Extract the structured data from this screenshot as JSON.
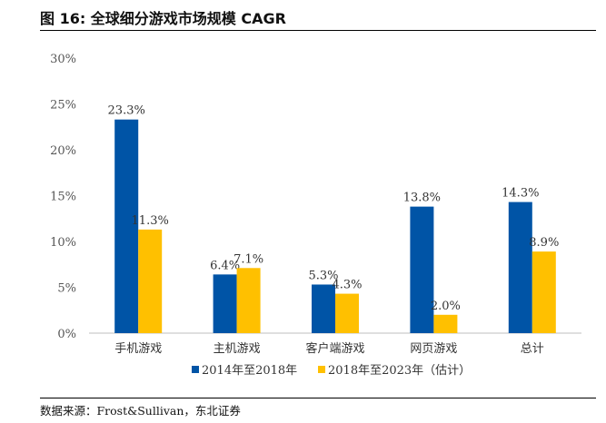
{
  "figure": {
    "title": "图 16:  全球细分游戏市场规模 CAGR",
    "source": "数据来源：Frost&Sullivan，东北证券"
  },
  "chart_data": {
    "type": "bar",
    "categories": [
      "手机游戏",
      "主机游戏",
      "客户端游戏",
      "网页游戏",
      "总计"
    ],
    "series": [
      {
        "name": "2014年至2018年",
        "values": [
          23.3,
          6.4,
          5.3,
          13.8,
          14.3
        ],
        "color": "#0054A6"
      },
      {
        "name": "2018年至2023年（估计）",
        "values": [
          11.3,
          7.1,
          4.3,
          2.0,
          8.9
        ],
        "color": "#FFC000"
      }
    ],
    "ylim": [
      0,
      30
    ],
    "yticks": [
      "0%",
      "5%",
      "10%",
      "15%",
      "20%",
      "25%",
      "30%"
    ],
    "ytick_values": [
      0,
      5,
      10,
      15,
      20,
      25,
      30
    ],
    "data_labels": [
      [
        "23.3%",
        "6.4%",
        "5.3%",
        "13.8%",
        "14.3%"
      ],
      [
        "11.3%",
        "7.1%",
        "4.3%",
        "2.0%",
        "8.9%"
      ]
    ],
    "grid": false,
    "legend": "bottom"
  }
}
